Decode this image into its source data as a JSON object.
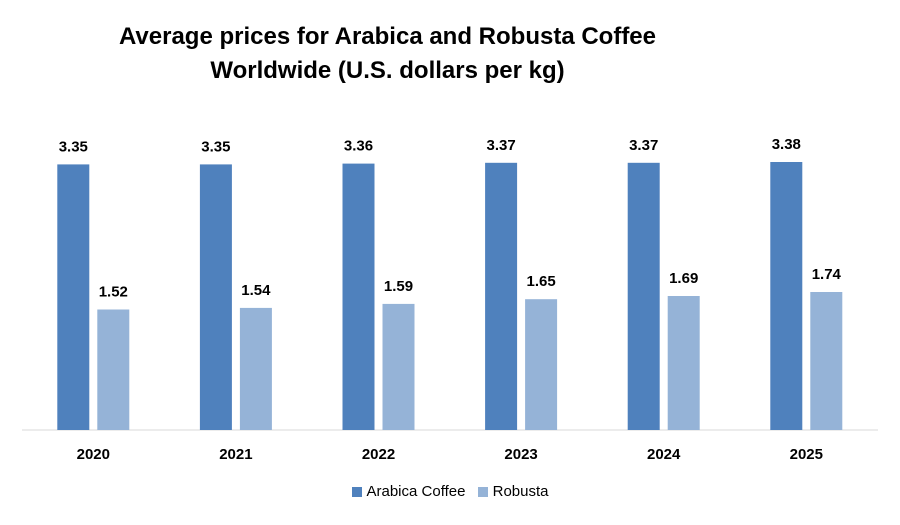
{
  "chart_data": {
    "type": "bar",
    "title_lines": [
      "Average prices for Arabica and Robusta Coffee",
      "Worldwide (U.S. dollars per kg)"
    ],
    "categories": [
      "2020",
      "2021",
      "2022",
      "2023",
      "2024",
      "2025"
    ],
    "series": [
      {
        "name": "Arabica Coffee",
        "color": "#4F81BD",
        "values": [
          3.35,
          3.35,
          3.36,
          3.37,
          3.37,
          3.38
        ]
      },
      {
        "name": "Robusta",
        "color": "#95B3D7",
        "values": [
          1.52,
          1.54,
          1.59,
          1.65,
          1.69,
          1.74
        ]
      }
    ],
    "xlabel": "",
    "ylabel": "",
    "ylim": [
      0,
      3.38
    ],
    "grid": false,
    "legend_position": "bottom",
    "data_labels": true
  }
}
